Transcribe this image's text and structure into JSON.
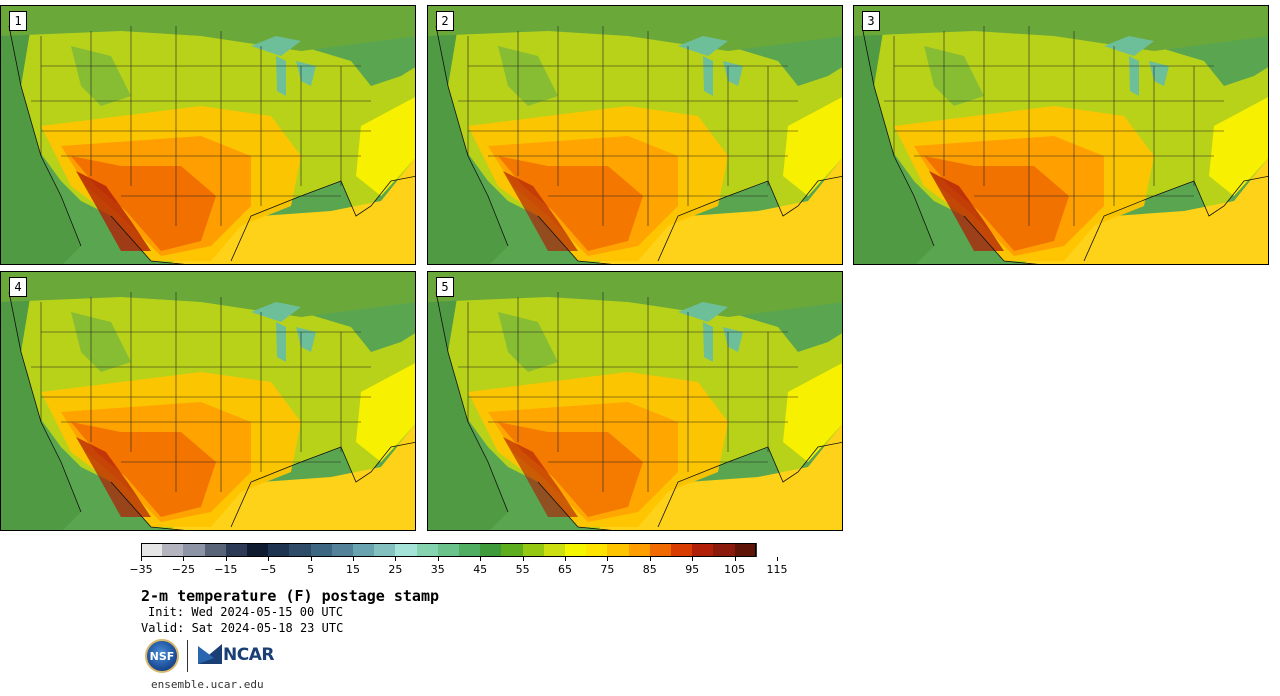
{
  "panels": [
    {
      "label": "1",
      "warmth": 1.0
    },
    {
      "label": "2",
      "warmth": 0.85
    },
    {
      "label": "3",
      "warmth": 0.95
    },
    {
      "label": "4",
      "warmth": 0.9
    },
    {
      "label": "5",
      "warmth": 0.8
    }
  ],
  "colorbar": {
    "colors": [
      "#e6e6e6",
      "#b4b4be",
      "#8c94a5",
      "#5a6478",
      "#2d3a55",
      "#0e1b30",
      "#1f3450",
      "#2e4c68",
      "#3d6682",
      "#54819a",
      "#6aa3b0",
      "#85c0c0",
      "#a5e3d8",
      "#86d3b0",
      "#6bc28a",
      "#4fae62",
      "#3e9a3a",
      "#5ead1f",
      "#94c812",
      "#ccdf10",
      "#f4f600",
      "#ffe400",
      "#ffc400",
      "#ff9e00",
      "#f06a00",
      "#d83c00",
      "#b02008",
      "#8a1a0c",
      "#5e1508"
    ],
    "ticks": [
      "−35",
      "−25",
      "−15",
      "−5",
      "5",
      "15",
      "25",
      "35",
      "45",
      "55",
      "65",
      "75",
      "85",
      "95",
      "105",
      "115"
    ]
  },
  "title": "2-m temperature (F) postage stamp",
  "init": "Init: Wed 2024-05-15 00 UTC",
  "valid": "Valid: Sat 2024-05-18 23 UTC",
  "logos": {
    "nsf": "NSF",
    "ncar": "NCAR"
  },
  "site": "ensemble.ucar.edu"
}
